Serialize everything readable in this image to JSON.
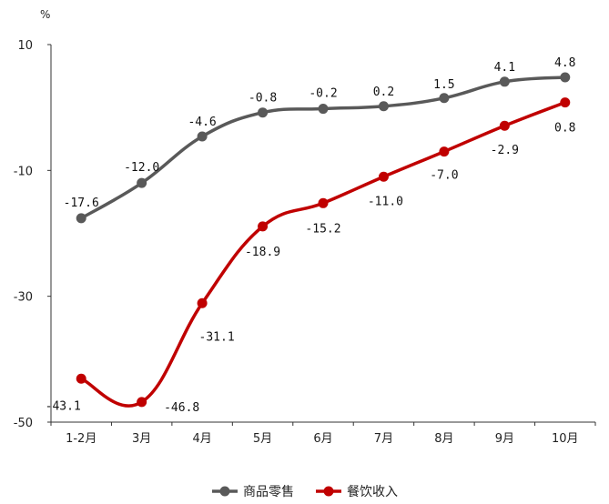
{
  "chart_data": {
    "type": "line",
    "unit_label": "%",
    "categories": [
      "1-2月",
      "3月",
      "4月",
      "5月",
      "6月",
      "7月",
      "8月",
      "9月",
      "10月"
    ],
    "ylim": [
      -50,
      10
    ],
    "yticks": [
      10,
      -10,
      -30,
      -50
    ],
    "grid": false,
    "legend_position": "bottom",
    "series": [
      {
        "name": "商品零售",
        "color": "#595959",
        "values": [
          -17.6,
          -12.0,
          -4.6,
          -0.8,
          -0.2,
          0.2,
          1.5,
          4.1,
          4.8
        ],
        "labels": [
          "-17.6",
          "-12.0",
          "-4.6",
          "-0.8",
          "-0.2",
          "0.2",
          "1.5",
          "4.1",
          "4.8"
        ]
      },
      {
        "name": "餐饮收入",
        "color": "#C00000",
        "values": [
          -43.1,
          -46.8,
          -31.1,
          -18.9,
          -15.2,
          -11.0,
          -7.0,
          -2.9,
          0.8
        ],
        "labels": [
          "-43.1",
          "-46.8",
          "-31.1",
          "-18.9",
          "-15.2",
          "-11.0",
          "-7.0",
          "-2.9",
          "0.8"
        ]
      }
    ]
  }
}
